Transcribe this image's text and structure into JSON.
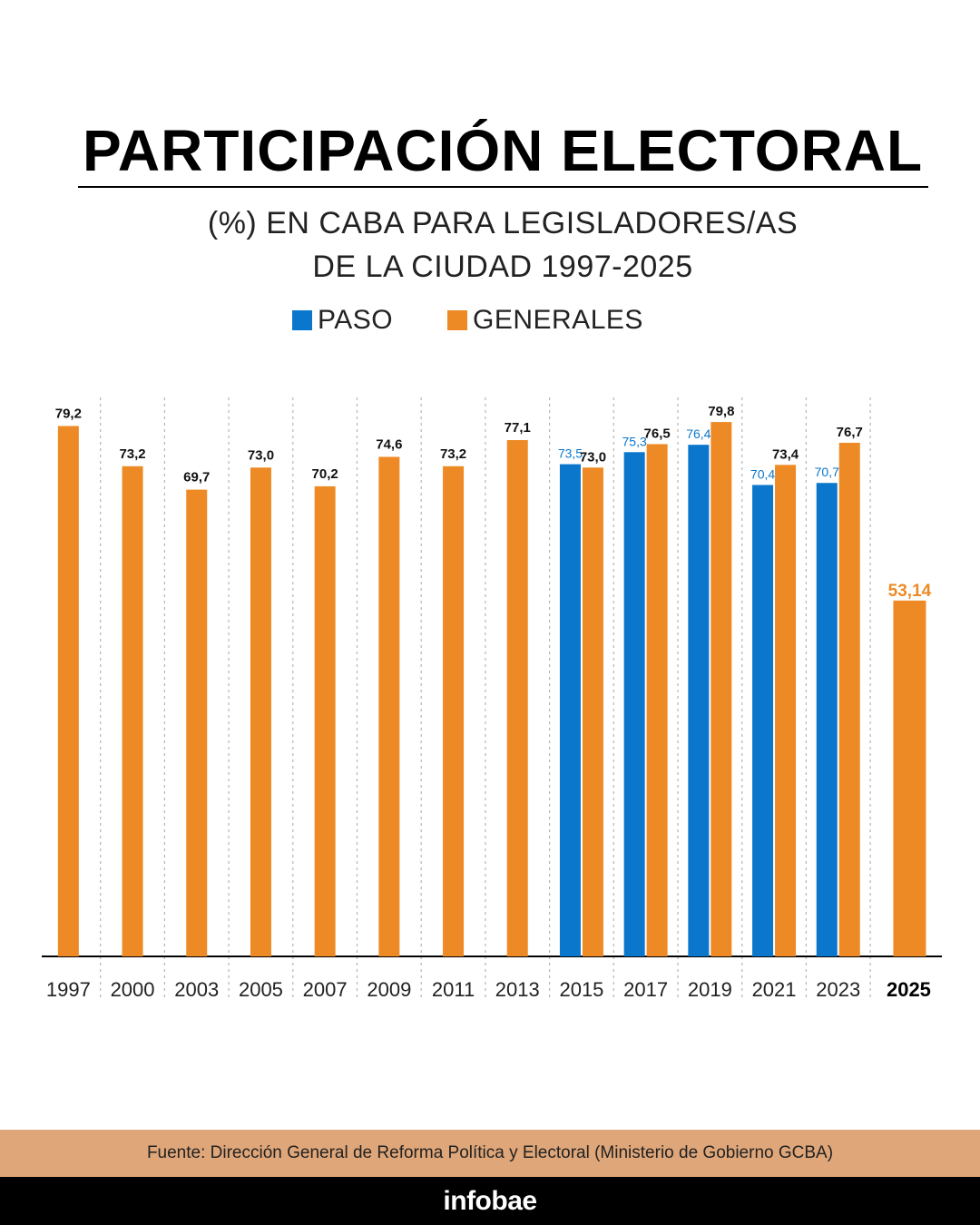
{
  "title": "PARTICIPACIÓN ELECTORAL",
  "subtitle_line1": "(%) EN CABA PARA LEGISLADORES/AS",
  "subtitle_line2": "DE LA CIUDAD 1997-2025",
  "legend": {
    "paso": "PASO",
    "generales": "GENERALES"
  },
  "colors": {
    "paso": "#0a77cc",
    "generales": "#ee8a25",
    "highlight_label": "#ee8a25"
  },
  "chart_data": {
    "type": "bar",
    "categories": [
      "1997",
      "2000",
      "2003",
      "2005",
      "2007",
      "2009",
      "2011",
      "2013",
      "2015",
      "2017",
      "2019",
      "2021",
      "2023",
      "2025"
    ],
    "series": [
      {
        "name": "PASO",
        "values": [
          null,
          null,
          null,
          null,
          null,
          null,
          null,
          null,
          73.5,
          75.3,
          76.4,
          70.4,
          70.7,
          null
        ],
        "labels": [
          "",
          "",
          "",
          "",
          "",
          "",
          "",
          "",
          "73,5",
          "75,3",
          "76,4",
          "70,4",
          "70,7",
          ""
        ]
      },
      {
        "name": "GENERALES",
        "values": [
          79.2,
          73.2,
          69.7,
          73.0,
          70.2,
          74.6,
          73.2,
          77.1,
          73.0,
          76.5,
          79.8,
          73.4,
          76.7,
          53.14
        ],
        "labels": [
          "79,2",
          "73,2",
          "69,7",
          "73,0",
          "70,2",
          "74,6",
          "73,2",
          "77,1",
          "73,0",
          "76,5",
          "79,8",
          "73,4",
          "76,7",
          "53,14"
        ]
      }
    ],
    "highlight_category": "2025",
    "grid": false,
    "legend_position": "top"
  },
  "source": "Fuente: Dirección General de Reforma Política y Electoral (Ministerio de Gobierno GCBA)",
  "brand": "infobae"
}
